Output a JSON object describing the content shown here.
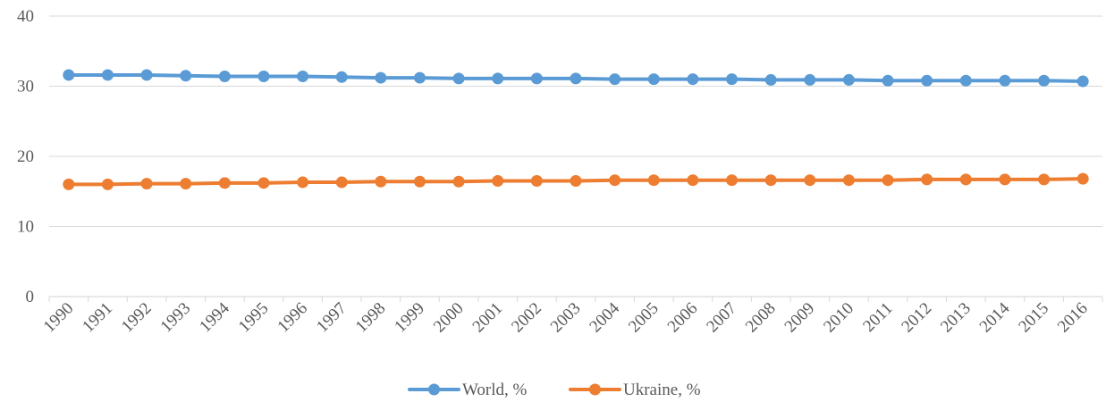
{
  "chart_data": {
    "type": "line",
    "title": "",
    "xlabel": "",
    "ylabel": "",
    "ylim": [
      0,
      40
    ],
    "yticks": [
      0,
      10,
      20,
      30,
      40
    ],
    "grid": "horizontal",
    "legend_position": "bottom",
    "x": [
      "1990",
      "1991",
      "1992",
      "1993",
      "1994",
      "1995",
      "1996",
      "1997",
      "1998",
      "1999",
      "2000",
      "2001",
      "2002",
      "2003",
      "2004",
      "2005",
      "2006",
      "2007",
      "2008",
      "2009",
      "2010",
      "2011",
      "2012",
      "2013",
      "2014",
      "2015",
      "2016"
    ],
    "series": [
      {
        "name": "World, %",
        "color": "#5b9bd5",
        "values": [
          31.6,
          31.6,
          31.6,
          31.5,
          31.4,
          31.4,
          31.4,
          31.3,
          31.2,
          31.2,
          31.1,
          31.1,
          31.1,
          31.1,
          31.0,
          31.0,
          31.0,
          31.0,
          30.9,
          30.9,
          30.9,
          30.8,
          30.8,
          30.8,
          30.8,
          30.8,
          30.7
        ]
      },
      {
        "name": "Ukraine, %",
        "color": "#ed7d31",
        "values": [
          16.0,
          16.0,
          16.1,
          16.1,
          16.2,
          16.2,
          16.3,
          16.3,
          16.4,
          16.4,
          16.4,
          16.5,
          16.5,
          16.5,
          16.6,
          16.6,
          16.6,
          16.6,
          16.6,
          16.6,
          16.6,
          16.6,
          16.7,
          16.7,
          16.7,
          16.7,
          16.8
        ]
      }
    ]
  }
}
